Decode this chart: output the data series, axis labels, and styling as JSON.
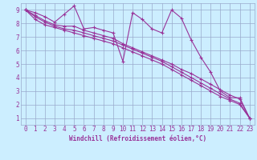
{
  "background_color": "#cceeff",
  "line_color": "#993399",
  "grid_color": "#99aacc",
  "xlabel": "Windchill (Refroidissement éolien,°C)",
  "xlim": [
    -0.5,
    23.5
  ],
  "ylim": [
    0.5,
    9.5
  ],
  "xticks": [
    0,
    1,
    2,
    3,
    4,
    5,
    6,
    7,
    8,
    9,
    10,
    11,
    12,
    13,
    14,
    15,
    16,
    17,
    18,
    19,
    20,
    21,
    22,
    23
  ],
  "yticks": [
    1,
    2,
    3,
    4,
    5,
    6,
    7,
    8,
    9
  ],
  "series": [
    {
      "x": [
        0,
        1,
        2,
        3,
        4,
        5,
        6,
        7,
        8,
        9,
        10,
        11,
        12,
        13,
        14,
        15,
        16,
        17,
        18,
        19,
        20,
        21,
        22,
        23
      ],
      "y": [
        9.0,
        8.8,
        8.5,
        8.1,
        8.7,
        9.3,
        7.6,
        7.7,
        7.5,
        7.3,
        5.2,
        8.8,
        8.3,
        7.6,
        7.3,
        9.0,
        8.4,
        6.8,
        5.5,
        4.4,
        3.0,
        2.5,
        2.5,
        1.0
      ]
    },
    {
      "x": [
        0,
        1,
        2,
        3,
        4,
        5,
        6,
        7,
        8,
        9,
        10,
        11,
        12,
        13,
        14,
        15,
        16,
        17,
        18,
        19,
        20,
        21,
        22,
        23
      ],
      "y": [
        9.0,
        8.6,
        8.2,
        7.9,
        7.8,
        7.8,
        7.5,
        7.3,
        7.1,
        6.9,
        6.5,
        6.2,
        5.9,
        5.6,
        5.3,
        5.0,
        4.6,
        4.3,
        3.9,
        3.5,
        3.1,
        2.7,
        2.4,
        1.0
      ]
    },
    {
      "x": [
        0,
        1,
        2,
        3,
        4,
        5,
        6,
        7,
        8,
        9,
        10,
        11,
        12,
        13,
        14,
        15,
        16,
        17,
        18,
        19,
        20,
        21,
        22,
        23
      ],
      "y": [
        9.0,
        8.5,
        8.1,
        7.8,
        7.6,
        7.5,
        7.3,
        7.1,
        6.9,
        6.7,
        6.4,
        6.1,
        5.8,
        5.5,
        5.2,
        4.8,
        4.4,
        4.0,
        3.6,
        3.2,
        2.8,
        2.4,
        2.1,
        1.0
      ]
    },
    {
      "x": [
        0,
        1,
        2,
        3,
        4,
        5,
        6,
        7,
        8,
        9,
        10,
        11,
        12,
        13,
        14,
        15,
        16,
        17,
        18,
        19,
        20,
        21,
        22,
        23
      ],
      "y": [
        9.0,
        8.3,
        7.9,
        7.7,
        7.5,
        7.3,
        7.1,
        6.9,
        6.7,
        6.5,
        6.2,
        5.9,
        5.6,
        5.3,
        5.0,
        4.6,
        4.2,
        3.8,
        3.4,
        3.0,
        2.6,
        2.3,
        2.0,
        1.0
      ]
    }
  ],
  "figsize": [
    3.2,
    2.0
  ],
  "dpi": 100
}
